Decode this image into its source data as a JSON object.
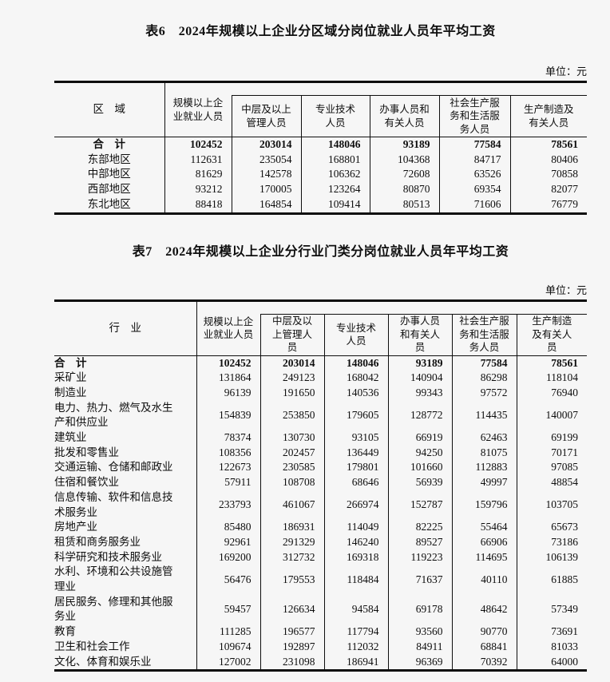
{
  "table6": {
    "title": "表6　2024年规模以上企业分区域分岗位就业人员年平均工资",
    "unit": "单位：元",
    "row_header": "区　域",
    "columns": [
      "规模以上企\n业就业人员",
      "中层及以上\n管理人员",
      "专业技术\n人员",
      "办事人员和\n有关人员",
      "社会生产服\n务和生活服\n务人员",
      "生产制造及\n有关人员"
    ],
    "rows": [
      {
        "label": "合　计",
        "bold": true,
        "values": [
          "102452",
          "203014",
          "148046",
          "93189",
          "77584",
          "78561"
        ]
      },
      {
        "label": "东部地区",
        "values": [
          "112631",
          "235054",
          "168801",
          "104368",
          "84717",
          "80406"
        ]
      },
      {
        "label": "中部地区",
        "values": [
          "81629",
          "142578",
          "106362",
          "72608",
          "63526",
          "70858"
        ]
      },
      {
        "label": "西部地区",
        "values": [
          "93212",
          "170005",
          "123264",
          "80870",
          "69354",
          "82077"
        ]
      },
      {
        "label": "东北地区",
        "values": [
          "88418",
          "164854",
          "109414",
          "80513",
          "71606",
          "76779"
        ]
      }
    ]
  },
  "table7": {
    "title": "表7　2024年规模以上企业分行业门类分岗位就业人员年平均工资",
    "unit": "单位：元",
    "row_header": "行　业",
    "columns": [
      "规模以上企\n业就业人员",
      "中层及以\n上管理人\n员",
      "专业技术\n人员",
      "办事人员\n和有关人\n员",
      "社会生产服\n务和生活服\n务人员",
      "生产制造\n及有关人\n员"
    ],
    "rows": [
      {
        "label": "合　计",
        "bold": true,
        "values": [
          "102452",
          "203014",
          "148046",
          "93189",
          "77584",
          "78561"
        ]
      },
      {
        "label": "采矿业",
        "values": [
          "131864",
          "249123",
          "168042",
          "140904",
          "86298",
          "118104"
        ]
      },
      {
        "label": "制造业",
        "values": [
          "96139",
          "191650",
          "140536",
          "99343",
          "97572",
          "76940"
        ]
      },
      {
        "label": "电力、热力、燃气及水生\n产和供应业",
        "values": [
          "154839",
          "253850",
          "179605",
          "128772",
          "114435",
          "140007"
        ]
      },
      {
        "label": "建筑业",
        "values": [
          "78374",
          "130730",
          "93105",
          "66919",
          "62463",
          "69199"
        ]
      },
      {
        "label": "批发和零售业",
        "values": [
          "108356",
          "202457",
          "136449",
          "94250",
          "81075",
          "70171"
        ]
      },
      {
        "label": "交通运输、仓储和邮政业",
        "values": [
          "122673",
          "230585",
          "179801",
          "101660",
          "112883",
          "97085"
        ]
      },
      {
        "label": "住宿和餐饮业",
        "values": [
          "57911",
          "108708",
          "68646",
          "56939",
          "49997",
          "48854"
        ]
      },
      {
        "label": "信息传输、软件和信息技\n术服务业",
        "values": [
          "233793",
          "461067",
          "266974",
          "152787",
          "159796",
          "103705"
        ]
      },
      {
        "label": "房地产业",
        "values": [
          "85480",
          "186931",
          "114049",
          "82225",
          "55464",
          "65673"
        ]
      },
      {
        "label": "租赁和商务服务业",
        "values": [
          "92961",
          "291329",
          "146240",
          "89527",
          "66906",
          "73186"
        ]
      },
      {
        "label": "科学研究和技术服务业",
        "values": [
          "169200",
          "312732",
          "169318",
          "119223",
          "114695",
          "106139"
        ]
      },
      {
        "label": "水利、环境和公共设施管\n理业",
        "values": [
          "56476",
          "179553",
          "118484",
          "71637",
          "40110",
          "61885"
        ]
      },
      {
        "label": "居民服务、修理和其他服\n务业",
        "values": [
          "59457",
          "126634",
          "94584",
          "69178",
          "48642",
          "57349"
        ]
      },
      {
        "label": "教育",
        "values": [
          "111285",
          "196577",
          "117794",
          "93560",
          "90770",
          "73691"
        ]
      },
      {
        "label": "卫生和社会工作",
        "values": [
          "109674",
          "192897",
          "112032",
          "84911",
          "68841",
          "81033"
        ]
      },
      {
        "label": "文化、体育和娱乐业",
        "values": [
          "127002",
          "231098",
          "186941",
          "96369",
          "70392",
          "64000"
        ]
      }
    ]
  }
}
